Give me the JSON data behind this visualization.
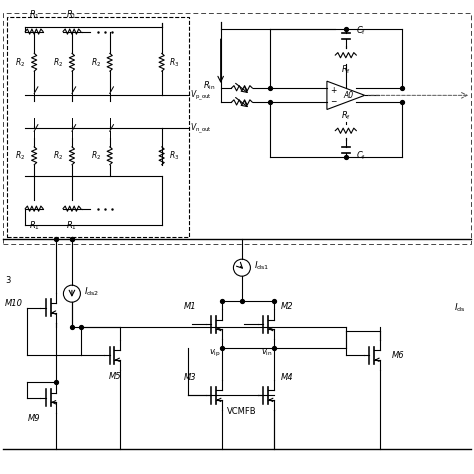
{
  "bg_color": "#ffffff",
  "line_color": "#000000",
  "figsize": [
    4.74,
    4.74
  ],
  "dpi": 100,
  "xlim": [
    0,
    10
  ],
  "ylim": [
    0,
    10
  ]
}
